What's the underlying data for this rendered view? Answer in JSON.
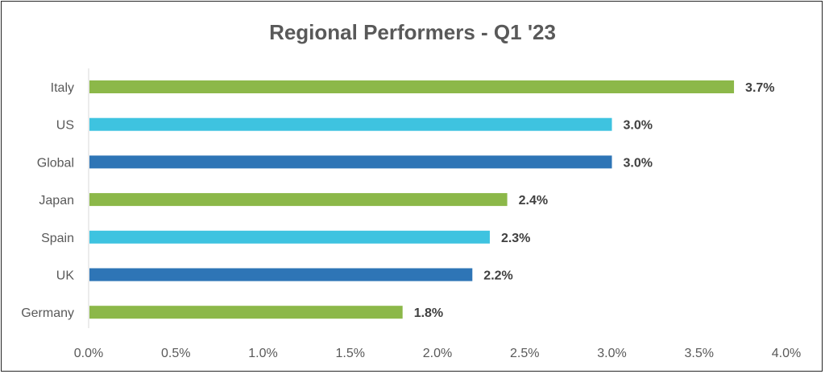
{
  "chart_data": {
    "type": "bar",
    "orientation": "horizontal",
    "title": "Regional Performers - Q1 '23",
    "categories": [
      "Italy",
      "US",
      "Global",
      "Japan",
      "Spain",
      "UK",
      "Germany"
    ],
    "values": [
      3.7,
      3.0,
      3.0,
      2.4,
      2.3,
      2.2,
      1.8
    ],
    "value_labels": [
      "3.7%",
      "3.0%",
      "3.0%",
      "2.4%",
      "2.3%",
      "2.2%",
      "1.8%"
    ],
    "colors": [
      "#8CB849",
      "#3EC3E0",
      "#2E75B6",
      "#8CB849",
      "#3EC3E0",
      "#2E75B6",
      "#8CB849"
    ],
    "xlim": [
      0,
      4.0
    ],
    "xticks": [
      0,
      0.5,
      1.0,
      1.5,
      2.0,
      2.5,
      3.0,
      3.5,
      4.0
    ],
    "xtick_labels": [
      "0.0%",
      "0.5%",
      "1.0%",
      "1.5%",
      "2.0%",
      "2.5%",
      "3.0%",
      "3.5%",
      "4.0%"
    ],
    "xlabel": "",
    "ylabel": "",
    "grid": false,
    "legend": "none"
  }
}
